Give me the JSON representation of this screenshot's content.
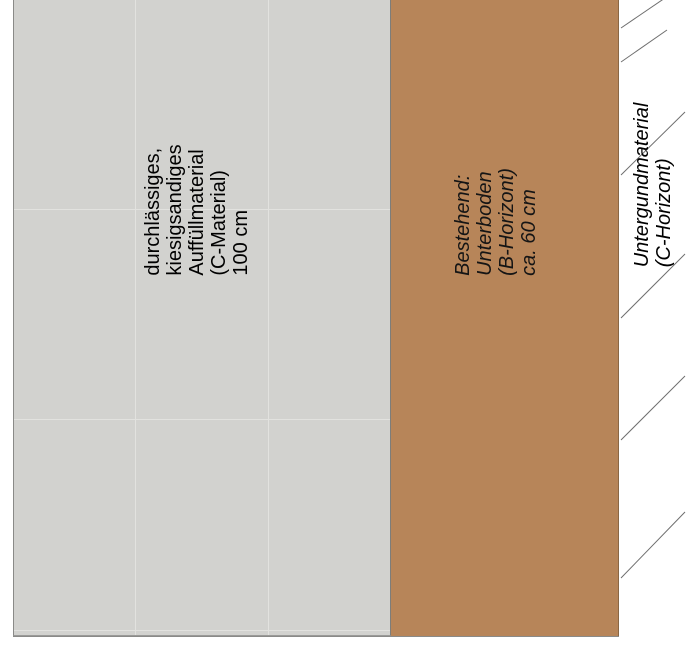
{
  "layers": {
    "fill": {
      "lines": [
        "durchlässiges,",
        "kiesigsandiges",
        "Auffüllmaterial",
        "(C-Material)",
        "100 cm"
      ]
    },
    "subsoil": {
      "lines": [
        "Bestehend:",
        "Unterboden",
        "(B-Horizont)",
        "ca. 60 cm"
      ]
    },
    "bedrock": {
      "lines": [
        "Untergundmaterial",
        "(C-Horizont)"
      ]
    }
  },
  "colors": {
    "fill": "#d2d2cf",
    "subsoil": "#b78559",
    "bedrock_hatch": "#6e6e6e"
  }
}
